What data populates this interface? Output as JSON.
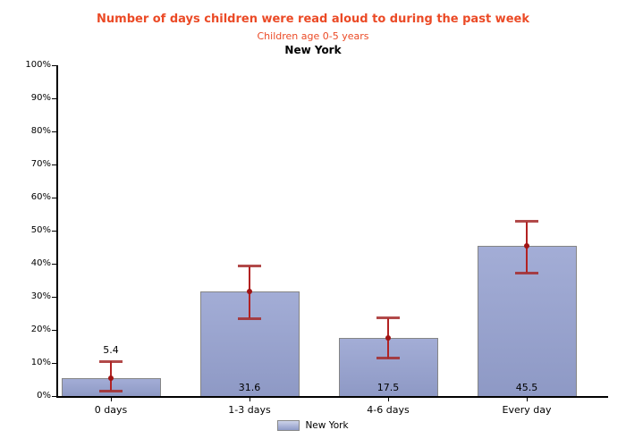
{
  "header": {
    "title": "Number of days children were read aloud to during the past week",
    "subtitle": "Children age 0-5 years",
    "location": "New York"
  },
  "legend": {
    "items": [
      {
        "label": "New York",
        "swatch_color": "#8f9bc8"
      }
    ]
  },
  "colors": {
    "title_text": "#eb4a26",
    "subtitle_text": "#eb4a26",
    "location_text": "#000000",
    "bar_fill": "#8f9bc8",
    "bar_fill_light": "#a3add6",
    "bar_border": "#858585",
    "error_bar": "#b22222",
    "axis": "#000000"
  },
  "chart_data": {
    "type": "bar",
    "title": "Number of days children were read aloud to during the past week",
    "subtitle": "Children age 0-5 years",
    "region": "New York",
    "categories": [
      "0 days",
      "1-3 days",
      "4-6 days",
      "Every day"
    ],
    "series": [
      {
        "name": "New York",
        "values": [
          5.4,
          31.6,
          17.5,
          45.5
        ]
      }
    ],
    "value_labels": [
      "5.4",
      "31.6",
      "17.5",
      "45.5"
    ],
    "error_bars": [
      {
        "low": 1.6,
        "high": 10.5
      },
      {
        "low": 23.5,
        "high": 39.2
      },
      {
        "low": 11.4,
        "high": 23.6
      },
      {
        "low": 37.3,
        "high": 52.8
      }
    ],
    "xlabel": "",
    "ylabel": "",
    "ylim": [
      0,
      100
    ],
    "ytick_step": 10,
    "ytick_labels": [
      "0%",
      "10%",
      "20%",
      "30%",
      "40%",
      "50%",
      "60%",
      "70%",
      "80%",
      "90%",
      "100%"
    ],
    "grid": false,
    "legend_position": "bottom"
  }
}
